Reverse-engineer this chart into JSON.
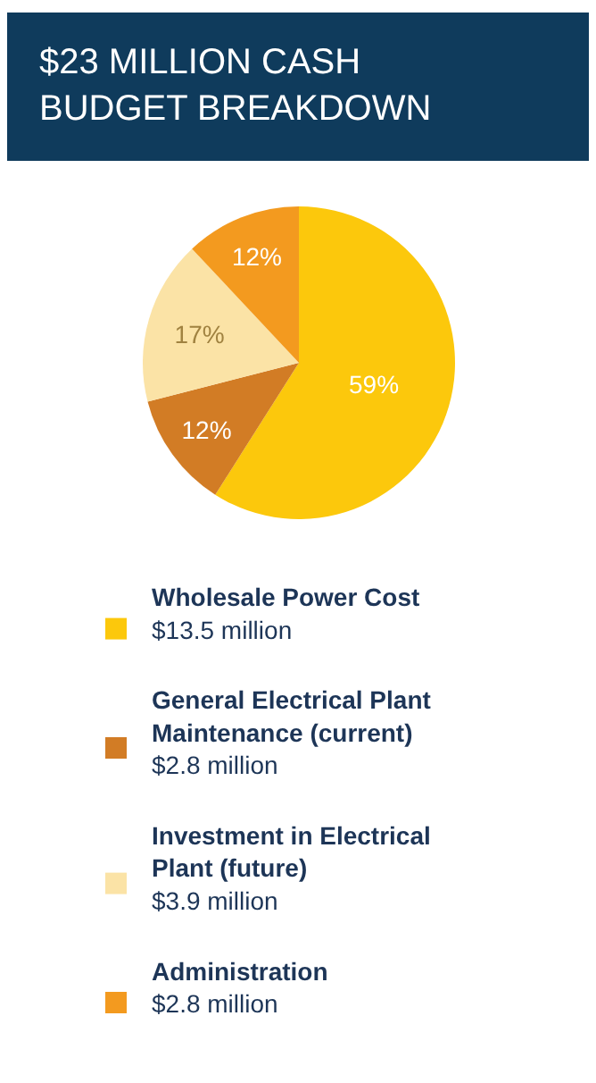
{
  "chart_data": {
    "type": "pie",
    "title": "$23 MILLION CASH\nBUDGET BREAKDOWN",
    "categories": [
      "Wholesale Power Cost\n$13.5 million",
      "General Electrical Plant\nMaintenance (current)\n$2.8 million",
      "Investment in Electrical\nPlant (future)\n$3.9 million",
      "Administration\n$2.8 million"
    ],
    "values": [
      59,
      12,
      17,
      12
    ],
    "value_labels": [
      "59%",
      "12%",
      "17%",
      "12%"
    ],
    "colors": [
      "#fcc80c",
      "#d27c25",
      "#fbe3a6",
      "#f39a1f"
    ],
    "legend": "bottom"
  }
}
